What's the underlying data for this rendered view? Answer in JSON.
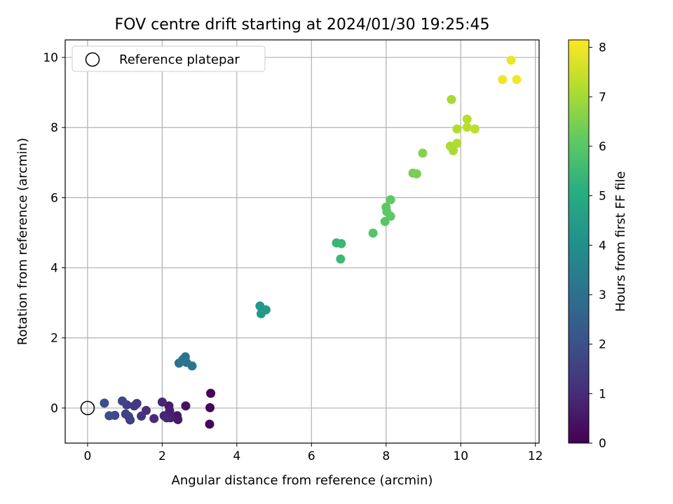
{
  "chart_data": {
    "type": "scatter",
    "title": "FOV centre drift starting at 2024/01/30 19:25:45",
    "xlabel": "Angular distance from reference (arcmin)",
    "ylabel": "Rotation from reference (arcmin)",
    "xlim": [
      -0.6,
      12.1
    ],
    "ylim": [
      -1.0,
      10.5
    ],
    "xticks": [
      "0",
      "2",
      "4",
      "6",
      "8",
      "10",
      "12"
    ],
    "yticks": [
      "0",
      "2",
      "4",
      "6",
      "8",
      "10"
    ],
    "grid": true,
    "legend": {
      "location": "upper-left",
      "entries": [
        "Reference platepar"
      ]
    },
    "reference_point": {
      "x": 0,
      "y": 0
    },
    "colorbar": {
      "label": "Hours from first FF file",
      "range": [
        0,
        8.15
      ],
      "ticks": [
        "0",
        "1",
        "2",
        "3",
        "4",
        "5",
        "6",
        "7",
        "8"
      ],
      "colormap": "viridis"
    },
    "points": [
      {
        "x": 3.3,
        "y": 0.42,
        "h": 0.05
      },
      {
        "x": 3.28,
        "y": 0.01,
        "h": 0.1
      },
      {
        "x": 3.27,
        "y": -0.46,
        "h": 0.15
      },
      {
        "x": 2.63,
        "y": 0.06,
        "h": 0.4
      },
      {
        "x": 2.4,
        "y": -0.22,
        "h": 0.5
      },
      {
        "x": 2.42,
        "y": -0.33,
        "h": 0.55
      },
      {
        "x": 2.18,
        "y": 0.06,
        "h": 0.65
      },
      {
        "x": 2.2,
        "y": -0.08,
        "h": 0.7
      },
      {
        "x": 2.22,
        "y": -0.28,
        "h": 0.75
      },
      {
        "x": 2.05,
        "y": -0.22,
        "h": 0.8
      },
      {
        "x": 2.12,
        "y": -0.28,
        "h": 0.85
      },
      {
        "x": 2.0,
        "y": 0.17,
        "h": 0.9
      },
      {
        "x": 1.78,
        "y": -0.3,
        "h": 1.0
      },
      {
        "x": 1.57,
        "y": -0.07,
        "h": 1.1
      },
      {
        "x": 1.44,
        "y": -0.23,
        "h": 1.2
      },
      {
        "x": 1.32,
        "y": 0.13,
        "h": 1.3
      },
      {
        "x": 1.25,
        "y": 0.06,
        "h": 1.35
      },
      {
        "x": 1.14,
        "y": -0.34,
        "h": 1.45
      },
      {
        "x": 1.05,
        "y": 0.09,
        "h": 1.5
      },
      {
        "x": 1.1,
        "y": -0.24,
        "h": 1.55
      },
      {
        "x": 1.02,
        "y": -0.17,
        "h": 1.6
      },
      {
        "x": 0.93,
        "y": 0.2,
        "h": 1.7
      },
      {
        "x": 0.73,
        "y": -0.21,
        "h": 1.8
      },
      {
        "x": 0.58,
        "y": -0.22,
        "h": 1.9
      },
      {
        "x": 0.45,
        "y": 0.14,
        "h": 2.0
      },
      {
        "x": 2.62,
        "y": 1.46,
        "h": 3.05
      },
      {
        "x": 2.55,
        "y": 1.38,
        "h": 3.1
      },
      {
        "x": 2.45,
        "y": 1.28,
        "h": 3.1
      },
      {
        "x": 2.65,
        "y": 1.3,
        "h": 3.15
      },
      {
        "x": 2.8,
        "y": 1.2,
        "h": 3.2
      },
      {
        "x": 4.62,
        "y": 2.91,
        "h": 4.3
      },
      {
        "x": 4.78,
        "y": 2.8,
        "h": 4.35
      },
      {
        "x": 4.65,
        "y": 2.69,
        "h": 4.35
      },
      {
        "x": 6.67,
        "y": 4.71,
        "h": 5.4
      },
      {
        "x": 6.8,
        "y": 4.69,
        "h": 5.45
      },
      {
        "x": 6.78,
        "y": 4.25,
        "h": 5.5
      },
      {
        "x": 7.65,
        "y": 4.99,
        "h": 5.95
      },
      {
        "x": 7.97,
        "y": 5.32,
        "h": 6.0
      },
      {
        "x": 8.0,
        "y": 5.73,
        "h": 6.05
      },
      {
        "x": 8.02,
        "y": 5.6,
        "h": 6.05
      },
      {
        "x": 8.12,
        "y": 5.47,
        "h": 6.1
      },
      {
        "x": 8.12,
        "y": 5.94,
        "h": 6.1
      },
      {
        "x": 8.72,
        "y": 6.7,
        "h": 6.4
      },
      {
        "x": 8.82,
        "y": 6.68,
        "h": 6.45
      },
      {
        "x": 8.98,
        "y": 7.27,
        "h": 6.6
      },
      {
        "x": 9.75,
        "y": 8.8,
        "h": 7.05
      },
      {
        "x": 9.72,
        "y": 7.47,
        "h": 7.1
      },
      {
        "x": 9.8,
        "y": 7.34,
        "h": 7.1
      },
      {
        "x": 9.9,
        "y": 7.55,
        "h": 7.15
      },
      {
        "x": 9.9,
        "y": 7.96,
        "h": 7.2
      },
      {
        "x": 10.17,
        "y": 8.24,
        "h": 7.25
      },
      {
        "x": 10.17,
        "y": 8.01,
        "h": 7.3
      },
      {
        "x": 10.38,
        "y": 7.96,
        "h": 7.35
      },
      {
        "x": 11.35,
        "y": 9.92,
        "h": 7.95
      },
      {
        "x": 11.12,
        "y": 9.37,
        "h": 8.0
      },
      {
        "x": 11.5,
        "y": 9.37,
        "h": 8.05
      }
    ]
  }
}
